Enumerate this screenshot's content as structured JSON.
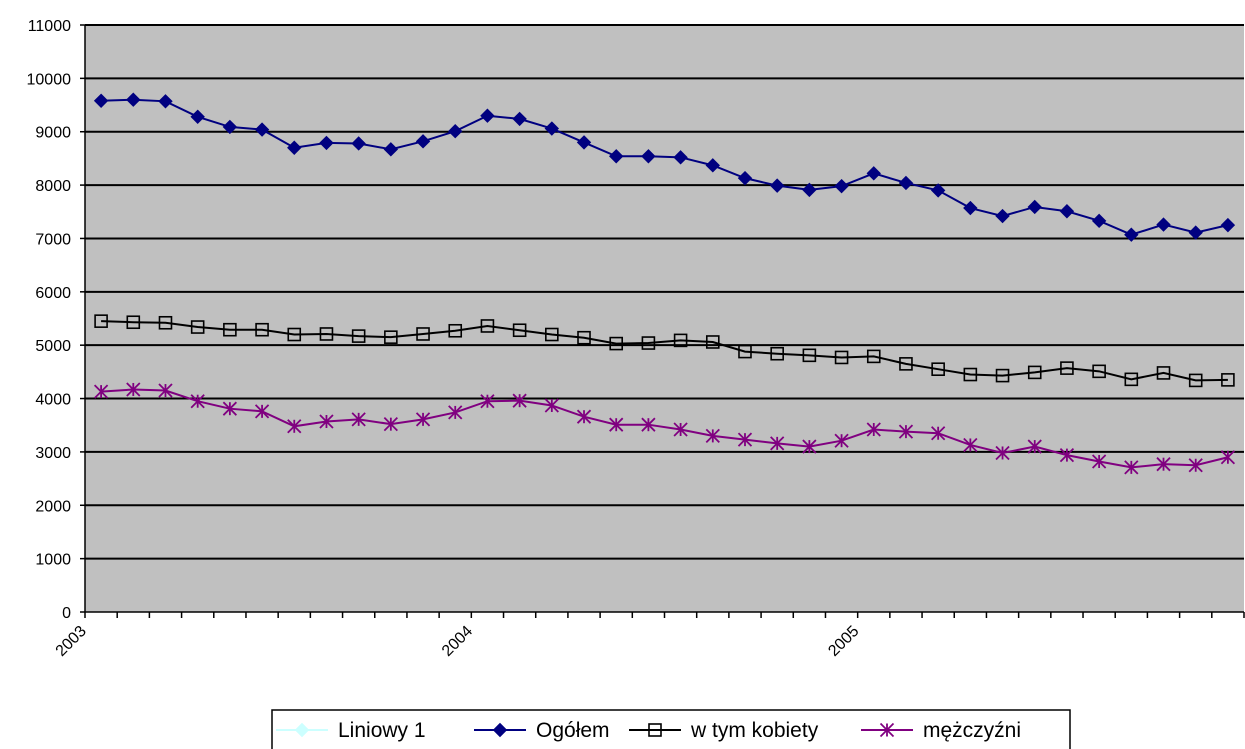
{
  "chart_data": {
    "type": "line",
    "title": "",
    "xlabel": "",
    "ylabel": "",
    "ylim": [
      0,
      11000
    ],
    "y_ticks": [
      0,
      1000,
      2000,
      3000,
      4000,
      5000,
      6000,
      7000,
      8000,
      9000,
      10000,
      11000
    ],
    "x_tick_labels": [
      "2003",
      "2004",
      "2005"
    ],
    "x_axis_months": 36,
    "grid": "horizontal major gridlines",
    "plot_background": "#c0c0c0",
    "legend_position": "bottom",
    "series": [
      {
        "name": "Liniowy 1",
        "color": "#ccffff",
        "marker": "diamond",
        "values": []
      },
      {
        "name": "Ogółem",
        "color": "#000080",
        "marker": "diamond",
        "values": [
          9580,
          9600,
          9570,
          9280,
          9090,
          9040,
          8700,
          8790,
          8780,
          8670,
          8820,
          9010,
          9300,
          9240,
          9060,
          8800,
          8540,
          8540,
          8520,
          8370,
          8130,
          7990,
          7910,
          7980,
          8220,
          8040,
          7900,
          7570,
          7420,
          7590,
          7510,
          7330,
          7070,
          7260,
          7110,
          7250
        ]
      },
      {
        "name": "w tym kobiety",
        "color": "#000000",
        "marker": "square",
        "values": [
          5450,
          5430,
          5420,
          5340,
          5290,
          5290,
          5200,
          5210,
          5170,
          5150,
          5210,
          5270,
          5360,
          5280,
          5200,
          5140,
          5030,
          5040,
          5090,
          5060,
          4880,
          4840,
          4810,
          4770,
          4790,
          4650,
          4550,
          4450,
          4430,
          4490,
          4570,
          4510,
          4360,
          4480,
          4340,
          4350
        ]
      },
      {
        "name": "mężczyźni",
        "color": "#800080",
        "marker": "asterisk",
        "values": [
          4130,
          4170,
          4150,
          3950,
          3810,
          3760,
          3480,
          3570,
          3610,
          3520,
          3610,
          3740,
          3950,
          3960,
          3870,
          3660,
          3510,
          3510,
          3420,
          3300,
          3230,
          3160,
          3100,
          3210,
          3420,
          3380,
          3350,
          3130,
          2980,
          3100,
          2940,
          2820,
          2710,
          2770,
          2750,
          2900
        ]
      }
    ]
  }
}
